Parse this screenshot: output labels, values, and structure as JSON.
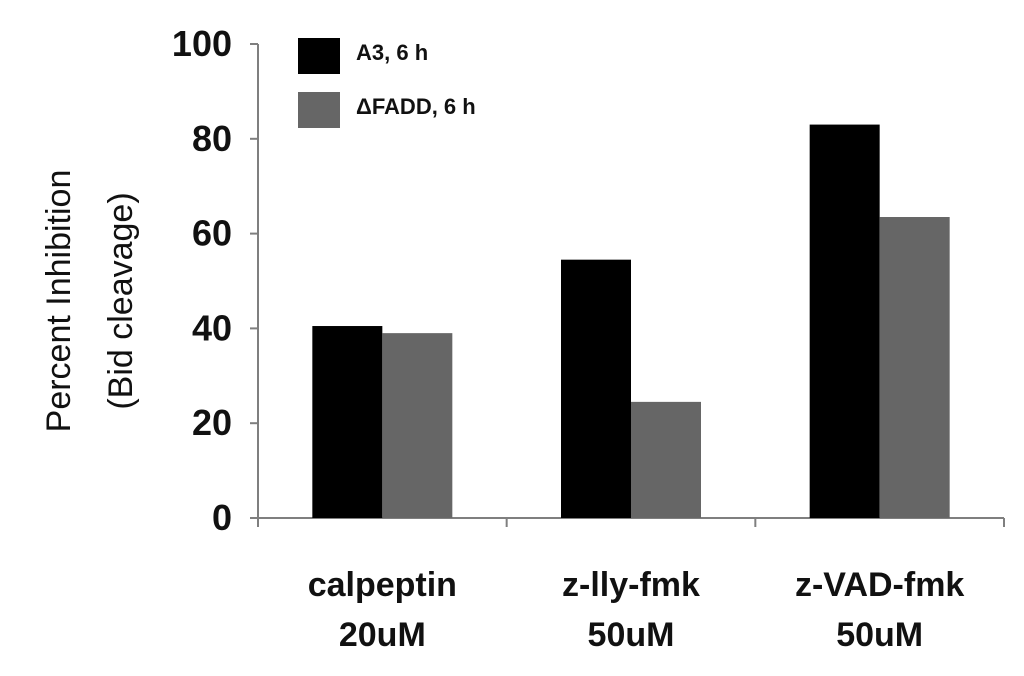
{
  "chart_data": {
    "type": "bar",
    "categories": [
      [
        "calpeptin",
        "20uM"
      ],
      [
        "z-lly-fmk",
        "50uM"
      ],
      [
        "z-VAD-fmk",
        "50uM"
      ]
    ],
    "series": [
      {
        "name": "A3, 6 h",
        "values": [
          40.5,
          54.5,
          83
        ],
        "color": "#000000"
      },
      {
        "name": "ΔFADD, 6 h",
        "values": [
          39,
          24.5,
          63.5
        ],
        "color": "#666666"
      }
    ],
    "title": "",
    "ylabel": [
      "Percent Inhibition",
      "(Bid cleavage)"
    ],
    "xlabel": "",
    "ylim": [
      0,
      100
    ],
    "yticks": [
      0,
      20,
      40,
      60,
      80,
      100
    ],
    "grid": false,
    "legend_position": "top-left"
  }
}
